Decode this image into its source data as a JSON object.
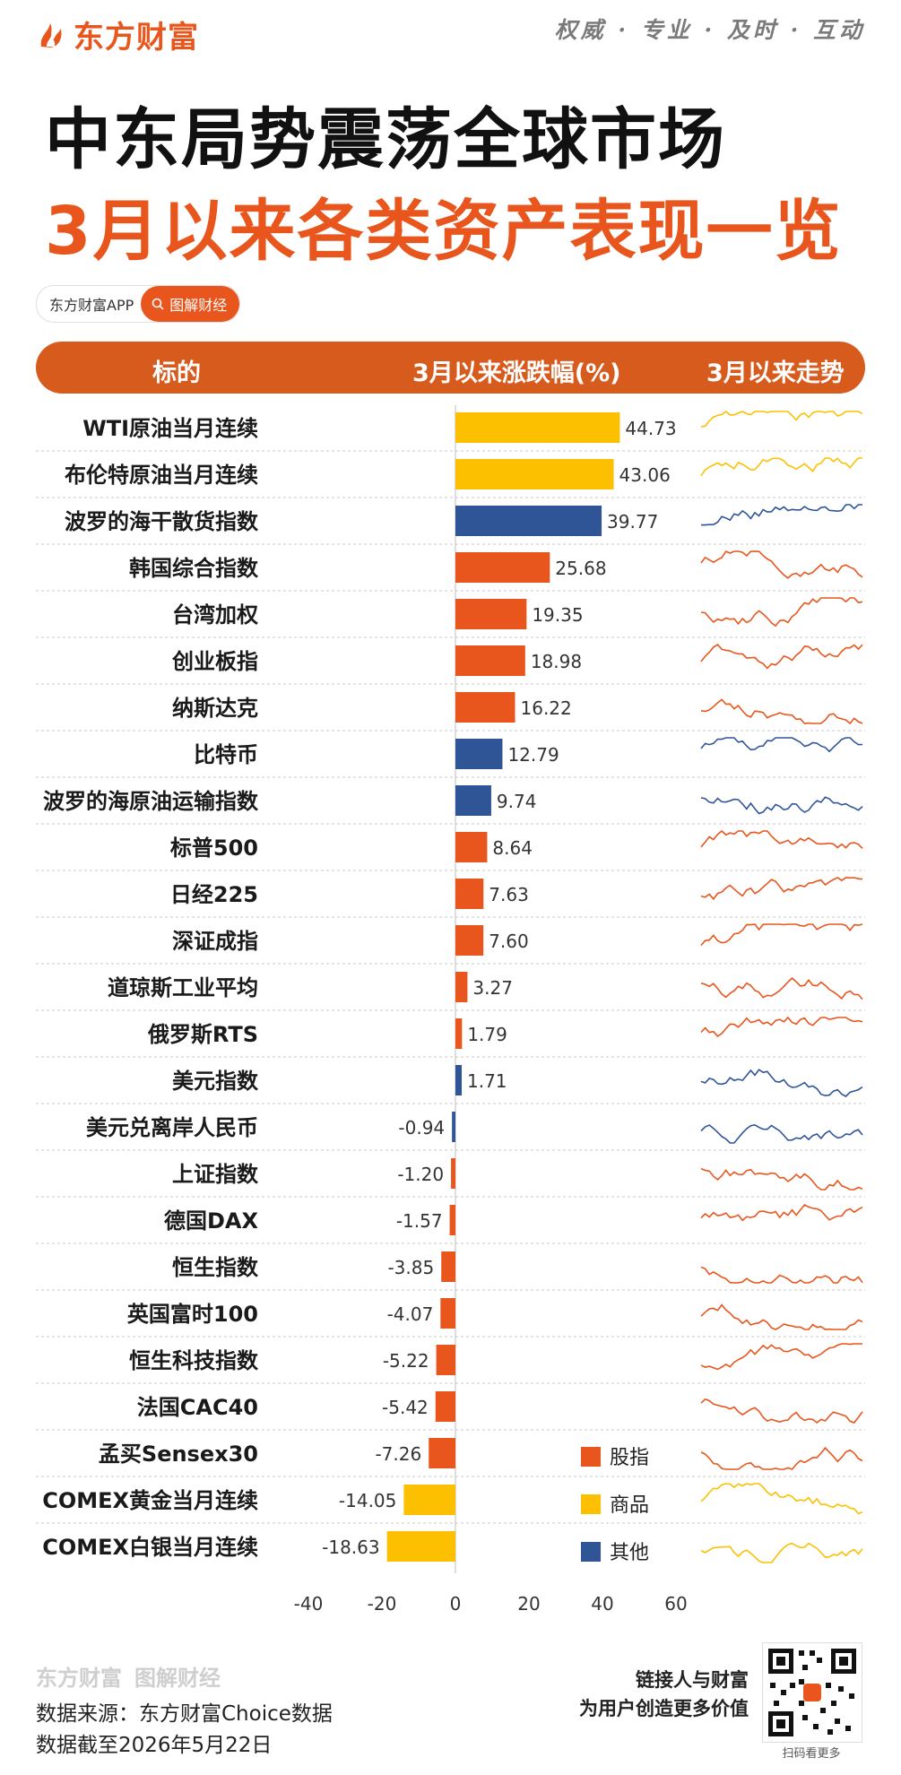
{
  "brand": {
    "logo_text": "东方财富",
    "slogan": "权威 · 专业 · 及时 · 互动"
  },
  "title": {
    "line1": "中东局势震荡全球市场",
    "line2": "3月以来各类资产表现一览"
  },
  "badge": {
    "app": "东方财富APP",
    "tag": "图解财经"
  },
  "header": {
    "col1": "标的",
    "col2": "3月以来涨跌幅(%)",
    "col3": "3月以来走势"
  },
  "colors": {
    "股指": "#e8561d",
    "商品": "#fcc000",
    "其他": "#2f5597",
    "header": "#d85b1e"
  },
  "legend": [
    {
      "label": "股指",
      "group": "股指"
    },
    {
      "label": "商品",
      "group": "商品"
    },
    {
      "label": "其他",
      "group": "其他"
    }
  ],
  "chart_data": {
    "type": "bar",
    "orientation": "horizontal",
    "xlim": [
      -40,
      60
    ],
    "x_ticks": [
      "-40",
      "-20",
      "0",
      "20",
      "40",
      "60"
    ],
    "grid": false,
    "legend_position": "bottom-right",
    "categories": [
      "WTI原油当月连续",
      "布伦特原油当月连续",
      "波罗的海干散货指数",
      "韩国综合指数",
      "台湾加权",
      "创业板指",
      "纳斯达克",
      "比特币",
      "波罗的海原油运输指数",
      "标普500",
      "日经225",
      "深证成指",
      "道琼斯工业平均",
      "俄罗斯RTS",
      "美元指数",
      "美元兑离岸人民币",
      "上证指数",
      "德国DAX",
      "恒生指数",
      "英国富时100",
      "恒生科技指数",
      "法国CAC40",
      "孟买Sensex30",
      "COMEX黄金当月连续",
      "COMEX白银当月连续"
    ],
    "values": [
      44.73,
      43.06,
      39.77,
      25.68,
      19.35,
      18.98,
      16.22,
      12.79,
      9.74,
      8.64,
      7.63,
      7.6,
      3.27,
      1.79,
      1.71,
      -0.94,
      -1.2,
      -1.57,
      -3.85,
      -4.07,
      -5.22,
      -5.42,
      -7.26,
      -14.05,
      -18.63
    ],
    "value_labels": [
      "44.73",
      "43.06",
      "39.77",
      "25.68",
      "19.35",
      "18.98",
      "16.22",
      "12.79",
      "9.74",
      "8.64",
      "7.63",
      "7.60",
      "3.27",
      "1.79",
      "1.71",
      "-0.94",
      "-1.20",
      "-1.57",
      "-3.85",
      "-4.07",
      "-5.22",
      "-5.42",
      "-7.26",
      "-14.05",
      "-18.63"
    ],
    "groups": [
      "商品",
      "商品",
      "其他",
      "股指",
      "股指",
      "股指",
      "股指",
      "其他",
      "其他",
      "股指",
      "股指",
      "股指",
      "股指",
      "股指",
      "其他",
      "其他",
      "股指",
      "股指",
      "股指",
      "股指",
      "股指",
      "股指",
      "股指",
      "商品",
      "商品"
    ]
  },
  "footer": {
    "logo": "东方财富",
    "tag": "图解财经",
    "source": "数据来源：东方财富Choice数据",
    "asof": "数据截至2026年5月22日",
    "slogan_line1": "链接人与财富",
    "slogan_line2": "为用户创造更多价值",
    "qr_label": "扫码看更多"
  }
}
